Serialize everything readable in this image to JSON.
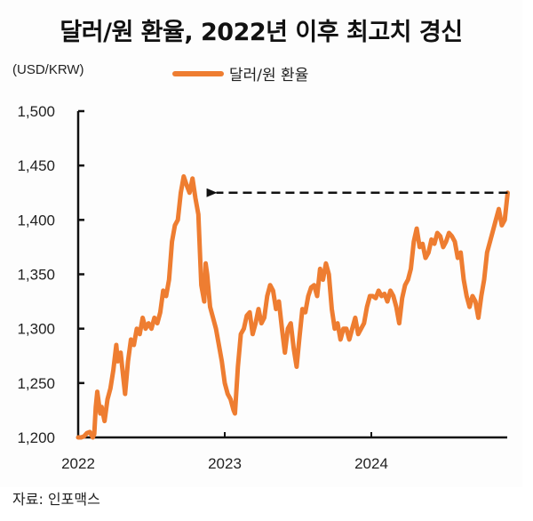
{
  "title": "달러/원 환율, 2022년 이후 최고치 경신",
  "unit_label": "(USD/KRW)",
  "legend": {
    "label": "달러/원 환율",
    "color": "#ee7d31"
  },
  "source": "자료: 인포맥스",
  "colors": {
    "line": "#ee7d31",
    "axis": "#111111",
    "annotation": "#111111",
    "background": "#fdfdfd"
  },
  "chart_data": {
    "type": "line",
    "title": "달러/원 환율, 2022년 이후 최고치 경신",
    "xlabel": "",
    "ylabel": "(USD/KRW)",
    "ylim": [
      1200,
      1500
    ],
    "yticks": [
      1200,
      1250,
      1300,
      1350,
      1400,
      1450,
      1500
    ],
    "ytick_labels": [
      "1,200",
      "1,250",
      "1,300",
      "1,350",
      "1,400",
      "1,450",
      "1,500"
    ],
    "xticks": [
      2022,
      2023,
      2024
    ],
    "xtick_labels": [
      "2022",
      "2023",
      "2024"
    ],
    "xlim": [
      2022.0,
      2024.93
    ],
    "grid": false,
    "legend_position": "top",
    "annotations": [
      {
        "type": "dashed-arrow",
        "from": [
          2024.93,
          1425
        ],
        "to": [
          2022.87,
          1425
        ],
        "text": ""
      }
    ],
    "series": [
      {
        "name": "달러/원 환율",
        "x": [
          2022.0,
          2022.02,
          2022.04,
          2022.06,
          2022.08,
          2022.1,
          2022.11,
          2022.12,
          2022.13,
          2022.15,
          2022.16,
          2022.18,
          2022.2,
          2022.22,
          2022.24,
          2022.26,
          2022.27,
          2022.29,
          2022.3,
          2022.32,
          2022.34,
          2022.36,
          2022.38,
          2022.4,
          2022.42,
          2022.44,
          2022.46,
          2022.48,
          2022.5,
          2022.52,
          2022.54,
          2022.56,
          2022.58,
          2022.6,
          2022.62,
          2022.64,
          2022.66,
          2022.68,
          2022.7,
          2022.72,
          2022.74,
          2022.76,
          2022.78,
          2022.8,
          2022.82,
          2022.84,
          2022.86,
          2022.87,
          2022.88,
          2022.9,
          2022.92,
          2022.94,
          2022.96,
          2022.98,
          2023.0,
          2023.02,
          2023.04,
          2023.06,
          2023.07,
          2023.09,
          2023.11,
          2023.13,
          2023.15,
          2023.17,
          2023.19,
          2023.21,
          2023.23,
          2023.25,
          2023.27,
          2023.29,
          2023.31,
          2023.33,
          2023.35,
          2023.37,
          2023.39,
          2023.41,
          2023.43,
          2023.45,
          2023.47,
          2023.49,
          2023.51,
          2023.53,
          2023.55,
          2023.57,
          2023.59,
          2023.61,
          2023.63,
          2023.65,
          2023.67,
          2023.69,
          2023.71,
          2023.73,
          2023.75,
          2023.77,
          2023.79,
          2023.81,
          2023.83,
          2023.85,
          2023.87,
          2023.89,
          2023.91,
          2023.93,
          2023.95,
          2023.97,
          2023.99,
          2024.01,
          2024.03,
          2024.05,
          2024.07,
          2024.09,
          2024.11,
          2024.13,
          2024.15,
          2024.17,
          2024.19,
          2024.21,
          2024.23,
          2024.25,
          2024.27,
          2024.29,
          2024.31,
          2024.33,
          2024.35,
          2024.37,
          2024.39,
          2024.41,
          2024.43,
          2024.45,
          2024.47,
          2024.49,
          2024.51,
          2024.53,
          2024.55,
          2024.57,
          2024.59,
          2024.61,
          2024.63,
          2024.65,
          2024.67,
          2024.69,
          2024.71,
          2024.73,
          2024.75,
          2024.77,
          2024.79,
          2024.81,
          2024.83,
          2024.85,
          2024.87,
          2024.89,
          2024.91,
          2024.93
        ],
        "values": [
          1200,
          1200,
          1201,
          1204,
          1205,
          1200,
          1203,
          1228,
          1242,
          1222,
          1228,
          1215,
          1235,
          1245,
          1262,
          1285,
          1270,
          1278,
          1265,
          1240,
          1270,
          1290,
          1285,
          1300,
          1295,
          1310,
          1300,
          1305,
          1300,
          1310,
          1305,
          1315,
          1335,
          1330,
          1345,
          1380,
          1395,
          1400,
          1425,
          1440,
          1432,
          1425,
          1438,
          1420,
          1405,
          1340,
          1325,
          1360,
          1350,
          1320,
          1310,
          1300,
          1285,
          1270,
          1250,
          1240,
          1235,
          1225,
          1222,
          1265,
          1295,
          1300,
          1312,
          1315,
          1295,
          1305,
          1318,
          1305,
          1310,
          1330,
          1340,
          1335,
          1318,
          1325,
          1300,
          1278,
          1300,
          1305,
          1282,
          1265,
          1292,
          1318,
          1315,
          1330,
          1338,
          1340,
          1330,
          1355,
          1345,
          1360,
          1350,
          1318,
          1300,
          1305,
          1290,
          1300,
          1300,
          1290,
          1300,
          1310,
          1295,
          1300,
          1305,
          1320,
          1330,
          1330,
          1328,
          1335,
          1330,
          1332,
          1325,
          1335,
          1330,
          1320,
          1305,
          1328,
          1340,
          1345,
          1355,
          1380,
          1392,
          1375,
          1378,
          1365,
          1370,
          1382,
          1378,
          1388,
          1385,
          1375,
          1380,
          1388,
          1385,
          1380,
          1365,
          1370,
          1345,
          1330,
          1320,
          1330,
          1325,
          1310,
          1330,
          1345,
          1370,
          1380,
          1390,
          1400,
          1410,
          1395,
          1400,
          1425
        ]
      }
    ]
  }
}
